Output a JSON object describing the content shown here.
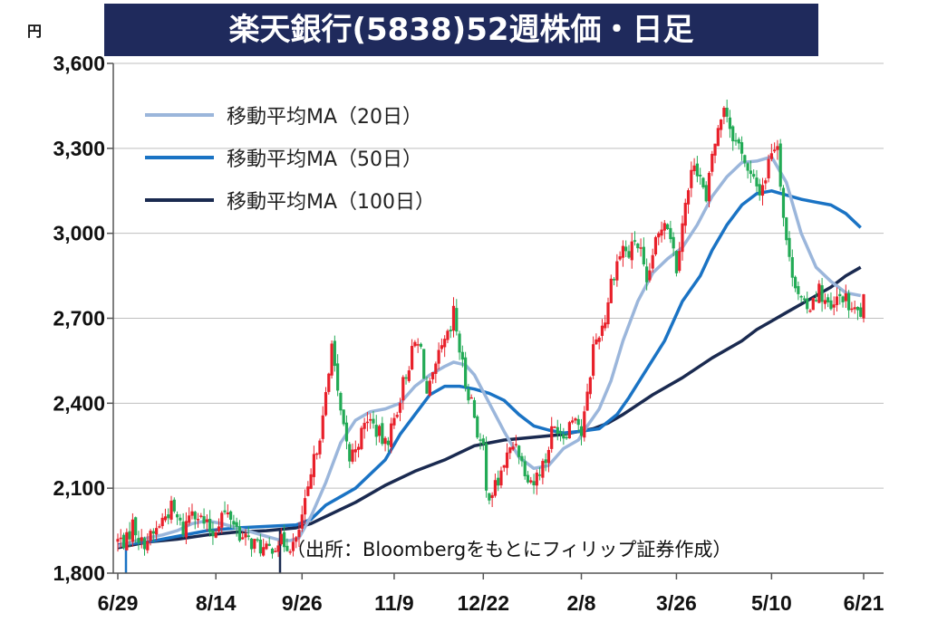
{
  "chart_data": {
    "type": "candlestick",
    "title": "楽天銀行(5838)52週株価・日足",
    "ylabel": "円",
    "ylim": [
      1800,
      3600
    ],
    "yticks": [
      "3,600",
      "3,300",
      "3,000",
      "2,700",
      "2,400",
      "2,100",
      "1,800"
    ],
    "ytick_values": [
      3600,
      3300,
      3000,
      2700,
      2400,
      2100,
      1800
    ],
    "xticks": [
      "6/29",
      "8/14",
      "9/26",
      "11/9",
      "12/22",
      "2/8",
      "3/26",
      "5/10",
      "6/21"
    ],
    "xtick_index": [
      0,
      33,
      62,
      93,
      123,
      156,
      188,
      220,
      251
    ],
    "grid": "horizontal",
    "legend_position": "top-left",
    "up_color": "#e8202a",
    "down_color": "#22aa55",
    "series": [
      {
        "name": "移動平均MA (20日)",
        "color": "#9bb6db",
        "values": [
          [
            0,
            1895
          ],
          [
            8,
            1920
          ],
          [
            15,
            1935
          ],
          [
            20,
            1950
          ],
          [
            25,
            1975
          ],
          [
            30,
            1985
          ],
          [
            35,
            1975
          ],
          [
            40,
            1960
          ],
          [
            45,
            1945
          ],
          [
            50,
            1930
          ],
          [
            55,
            1915
          ],
          [
            58,
            1915
          ],
          [
            61,
            1925
          ],
          [
            65,
            2000
          ],
          [
            70,
            2120
          ],
          [
            75,
            2260
          ],
          [
            80,
            2340
          ],
          [
            85,
            2370
          ],
          [
            90,
            2380
          ],
          [
            95,
            2400
          ],
          [
            100,
            2460
          ],
          [
            105,
            2500
          ],
          [
            110,
            2530
          ],
          [
            113,
            2545
          ],
          [
            117,
            2535
          ],
          [
            120,
            2500
          ],
          [
            125,
            2400
          ],
          [
            130,
            2300
          ],
          [
            135,
            2210
          ],
          [
            140,
            2170
          ],
          [
            145,
            2180
          ],
          [
            150,
            2240
          ],
          [
            155,
            2270
          ],
          [
            158,
            2320
          ],
          [
            162,
            2380
          ],
          [
            166,
            2480
          ],
          [
            170,
            2620
          ],
          [
            175,
            2760
          ],
          [
            180,
            2860
          ],
          [
            185,
            2910
          ],
          [
            190,
            2950
          ],
          [
            195,
            3030
          ],
          [
            200,
            3130
          ],
          [
            205,
            3200
          ],
          [
            210,
            3250
          ],
          [
            215,
            3255
          ],
          [
            220,
            3270
          ],
          [
            225,
            3180
          ],
          [
            230,
            3000
          ],
          [
            235,
            2880
          ],
          [
            240,
            2830
          ],
          [
            245,
            2790
          ],
          [
            250,
            2780
          ]
        ]
      },
      {
        "name": "移動平均MA (50日)",
        "color": "#1a73c4",
        "values": [
          [
            0,
            1900
          ],
          [
            10,
            1910
          ],
          [
            20,
            1930
          ],
          [
            30,
            1950
          ],
          [
            40,
            1960
          ],
          [
            50,
            1965
          ],
          [
            60,
            1970
          ],
          [
            65,
            1990
          ],
          [
            70,
            2040
          ],
          [
            80,
            2100
          ],
          [
            90,
            2200
          ],
          [
            95,
            2290
          ],
          [
            100,
            2360
          ],
          [
            105,
            2430
          ],
          [
            110,
            2460
          ],
          [
            115,
            2460
          ],
          [
            120,
            2450
          ],
          [
            125,
            2435
          ],
          [
            130,
            2410
          ],
          [
            135,
            2360
          ],
          [
            140,
            2320
          ],
          [
            145,
            2305
          ],
          [
            150,
            2295
          ],
          [
            155,
            2300
          ],
          [
            162,
            2310
          ],
          [
            168,
            2360
          ],
          [
            172,
            2420
          ],
          [
            178,
            2520
          ],
          [
            184,
            2620
          ],
          [
            190,
            2760
          ],
          [
            196,
            2850
          ],
          [
            200,
            2940
          ],
          [
            205,
            3030
          ],
          [
            210,
            3100
          ],
          [
            215,
            3140
          ],
          [
            220,
            3150
          ],
          [
            225,
            3135
          ],
          [
            230,
            3120
          ],
          [
            235,
            3110
          ],
          [
            240,
            3100
          ],
          [
            245,
            3070
          ],
          [
            250,
            3020
          ]
        ]
      },
      {
        "name": "移動平均MA (100日)",
        "color": "#1a2a50",
        "values": [
          [
            0,
            1890
          ],
          [
            10,
            1910
          ],
          [
            20,
            1920
          ],
          [
            30,
            1935
          ],
          [
            40,
            1945
          ],
          [
            50,
            1950
          ],
          [
            60,
            1960
          ],
          [
            65,
            1975
          ],
          [
            70,
            2000
          ],
          [
            80,
            2050
          ],
          [
            90,
            2110
          ],
          [
            100,
            2160
          ],
          [
            110,
            2200
          ],
          [
            120,
            2250
          ],
          [
            125,
            2260
          ],
          [
            130,
            2270
          ],
          [
            140,
            2280
          ],
          [
            150,
            2290
          ],
          [
            160,
            2310
          ],
          [
            165,
            2330
          ],
          [
            170,
            2360
          ],
          [
            180,
            2430
          ],
          [
            190,
            2490
          ],
          [
            200,
            2560
          ],
          [
            210,
            2620
          ],
          [
            215,
            2660
          ],
          [
            220,
            2690
          ],
          [
            225,
            2720
          ],
          [
            230,
            2750
          ],
          [
            235,
            2780
          ],
          [
            240,
            2810
          ],
          [
            245,
            2850
          ],
          [
            250,
            2880
          ]
        ]
      }
    ],
    "annotation": "（出所：Bloombergをもとにフィリップ証券作成）",
    "candle_path": [
      [
        0,
        1915
      ],
      [
        3,
        1915
      ],
      [
        5,
        1975
      ],
      [
        8,
        1905
      ],
      [
        12,
        1935
      ],
      [
        15,
        1990
      ],
      [
        18,
        2030
      ],
      [
        22,
        1950
      ],
      [
        25,
        2035
      ],
      [
        29,
        1975
      ],
      [
        32,
        1940
      ],
      [
        35,
        2010
      ],
      [
        38,
        2000
      ],
      [
        42,
        1920
      ],
      [
        46,
        1905
      ],
      [
        50,
        1875
      ],
      [
        54,
        1915
      ],
      [
        56,
        1905
      ],
      [
        58,
        1900
      ],
      [
        60,
        1905
      ],
      [
        62,
        2000
      ],
      [
        64,
        2080
      ],
      [
        67,
        2250
      ],
      [
        69,
        2340
      ],
      [
        71,
        2500
      ],
      [
        72,
        2640
      ],
      [
        74,
        2420
      ],
      [
        76,
        2300
      ],
      [
        78,
        2200
      ],
      [
        80,
        2250
      ],
      [
        82,
        2290
      ],
      [
        84,
        2350
      ],
      [
        86,
        2320
      ],
      [
        88,
        2290
      ],
      [
        90,
        2250
      ],
      [
        92,
        2310
      ],
      [
        94,
        2380
      ],
      [
        96,
        2470
      ],
      [
        98,
        2540
      ],
      [
        100,
        2610
      ],
      [
        102,
        2590
      ],
      [
        104,
        2430
      ],
      [
        106,
        2480
      ],
      [
        108,
        2560
      ],
      [
        110,
        2610
      ],
      [
        112,
        2650
      ],
      [
        113,
        2720
      ],
      [
        115,
        2590
      ],
      [
        117,
        2470
      ],
      [
        119,
        2410
      ],
      [
        121,
        2300
      ],
      [
        123,
        2230
      ],
      [
        124,
        2080
      ],
      [
        126,
        2090
      ],
      [
        128,
        2120
      ],
      [
        130,
        2190
      ],
      [
        132,
        2230
      ],
      [
        134,
        2270
      ],
      [
        136,
        2190
      ],
      [
        138,
        2150
      ],
      [
        140,
        2120
      ],
      [
        142,
        2170
      ],
      [
        144,
        2200
      ],
      [
        146,
        2300
      ],
      [
        148,
        2320
      ],
      [
        150,
        2290
      ],
      [
        152,
        2330
      ],
      [
        154,
        2370
      ],
      [
        156,
        2290
      ],
      [
        158,
        2420
      ],
      [
        160,
        2600
      ],
      [
        162,
        2650
      ],
      [
        164,
        2700
      ],
      [
        166,
        2830
      ],
      [
        168,
        2900
      ],
      [
        170,
        2950
      ],
      [
        172,
        2920
      ],
      [
        174,
        2980
      ],
      [
        176,
        2930
      ],
      [
        178,
        2800
      ],
      [
        180,
        2930
      ],
      [
        182,
        2990
      ],
      [
        184,
        3060
      ],
      [
        186,
        3000
      ],
      [
        188,
        2880
      ],
      [
        190,
        3050
      ],
      [
        192,
        3150
      ],
      [
        194,
        3260
      ],
      [
        196,
        3200
      ],
      [
        198,
        3100
      ],
      [
        200,
        3280
      ],
      [
        202,
        3360
      ],
      [
        204,
        3460
      ],
      [
        206,
        3380
      ],
      [
        208,
        3320
      ],
      [
        210,
        3300
      ],
      [
        212,
        3210
      ],
      [
        214,
        3180
      ],
      [
        216,
        3150
      ],
      [
        218,
        3200
      ],
      [
        220,
        3300
      ],
      [
        222,
        3320
      ],
      [
        224,
        3060
      ],
      [
        226,
        2900
      ],
      [
        228,
        2830
      ],
      [
        230,
        2760
      ],
      [
        232,
        2720
      ],
      [
        234,
        2780
      ],
      [
        236,
        2800
      ],
      [
        238,
        2760
      ],
      [
        240,
        2720
      ],
      [
        242,
        2760
      ],
      [
        244,
        2780
      ],
      [
        246,
        2740
      ],
      [
        248,
        2720
      ],
      [
        250,
        2720
      ],
      [
        251,
        2760
      ]
    ]
  },
  "legend": {
    "ma20": "移動平均MA（20日）",
    "ma50": "移動平均MA（50日）",
    "ma100": "移動平均MA（100日）"
  }
}
